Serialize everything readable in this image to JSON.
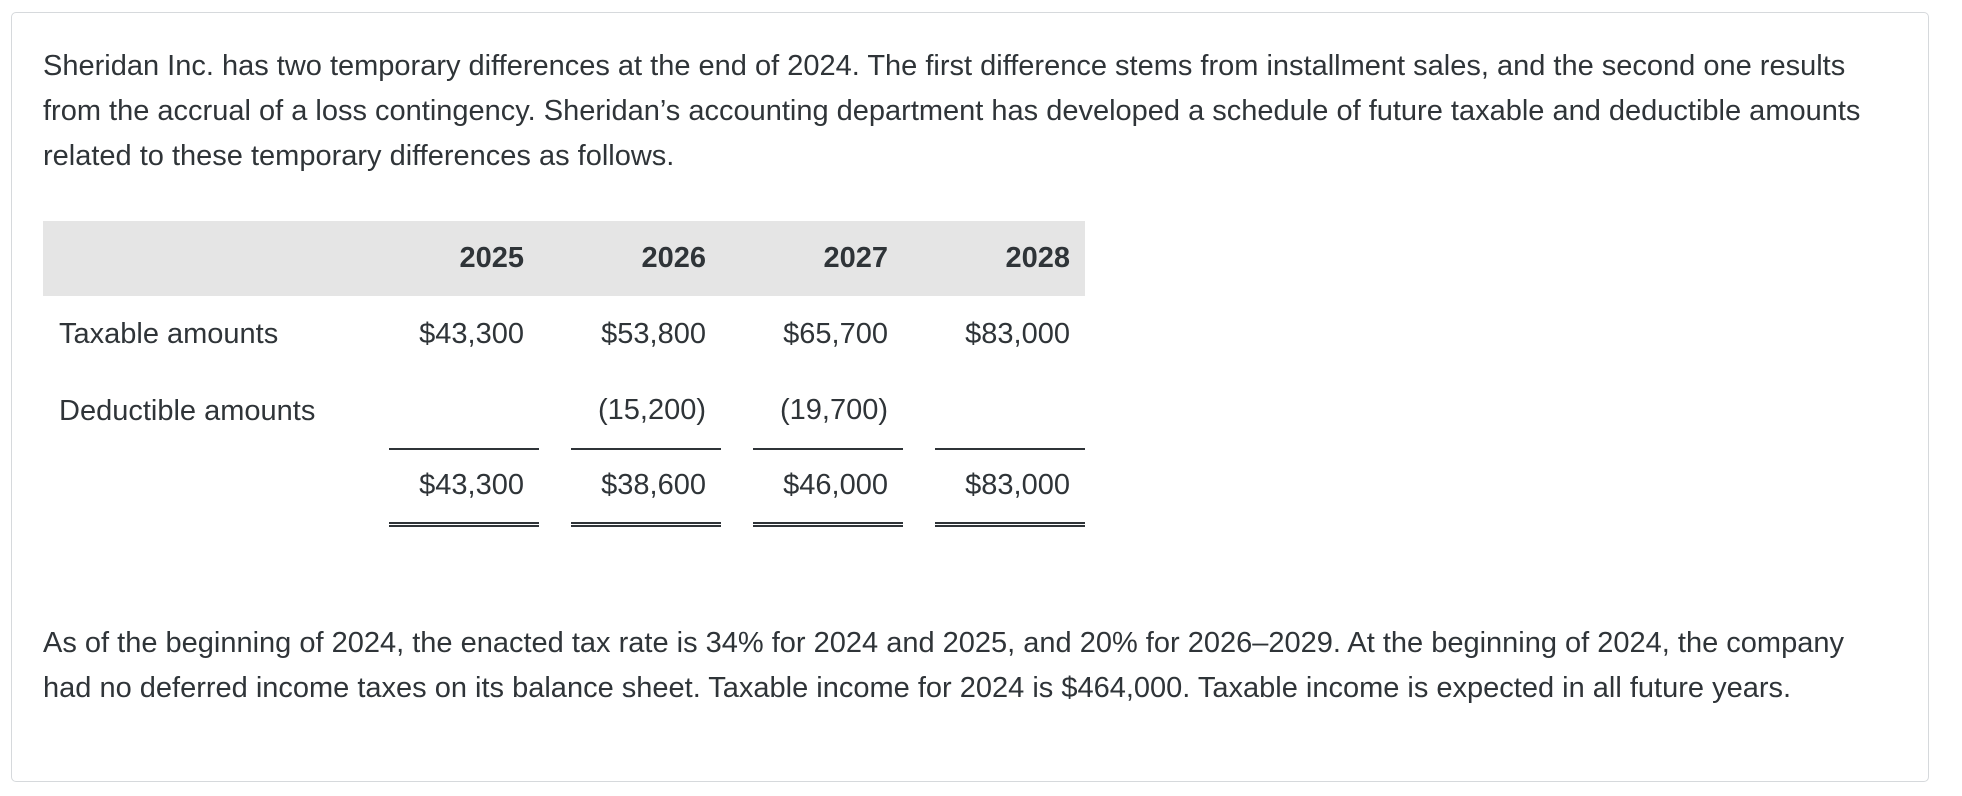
{
  "intro": "Sheridan Inc. has two temporary differences at the end of 2024. The first difference stems from installment sales, and the second one results from the accrual of a loss contingency. Sheridan’s accounting department has developed a schedule of future taxable and deductible amounts related to these temporary differences as follows.",
  "schedule": {
    "years": [
      "2025",
      "2026",
      "2027",
      "2028"
    ],
    "rows": [
      {
        "label": "Taxable amounts",
        "values": [
          "$43,300",
          "$53,800",
          "$65,700",
          "$83,000"
        ]
      },
      {
        "label": "Deductible amounts",
        "values": [
          "",
          "(15,200)",
          "(19,700)",
          ""
        ]
      }
    ],
    "totals": [
      "$43,300",
      "$38,600",
      "$46,000",
      "$83,000"
    ]
  },
  "closing": "As of the beginning of 2024, the enacted tax rate is 34% for 2024 and 2025, and 20% for 2026–2029. At the beginning of 2024, the company had no deferred income taxes on its balance sheet. Taxable income for 2024 is $464,000. Taxable income is expected in all future years."
}
